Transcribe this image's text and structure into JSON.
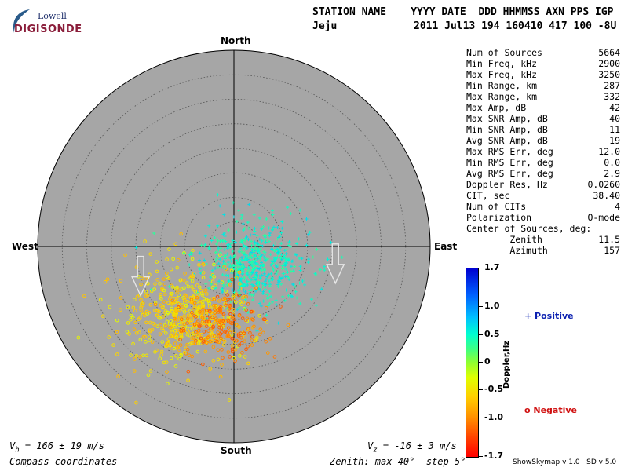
{
  "logo": {
    "top": "Lowell",
    "bottom": "DIGISONDE"
  },
  "header": {
    "row1": "STATION NAME    YYYY DATE  DDD HHMMSS AXN PPS IGP",
    "station": "Jeju",
    "row2": "2011 Jul13 194 160410 417 100 -8U"
  },
  "stats": [
    {
      "label": "Num of Sources",
      "value": "5664"
    },
    {
      "label": "Min Freq, kHz",
      "value": "2900"
    },
    {
      "label": "Max Freq, kHz",
      "value": "3250"
    },
    {
      "label": "Min Range, km",
      "value": "287"
    },
    {
      "label": "Max Range, km",
      "value": "332"
    },
    {
      "label": "Max Amp, dB",
      "value": "42"
    },
    {
      "label": "Max SNR Amp, dB",
      "value": "40"
    },
    {
      "label": "Min SNR Amp, dB",
      "value": "11"
    },
    {
      "label": "Avg SNR Amp, dB",
      "value": "19"
    },
    {
      "label": "Max RMS Err, deg",
      "value": "12.0"
    },
    {
      "label": "Min RMS Err, deg",
      "value": "0.0"
    },
    {
      "label": "Avg RMS Err, deg",
      "value": "2.9"
    },
    {
      "label": "Doppler Res, Hz",
      "value": "0.0260"
    },
    {
      "label": "CIT, sec",
      "value": "38.40"
    },
    {
      "label": "Num of CITs",
      "value": "4"
    },
    {
      "label": "Polarization",
      "value": "O-mode"
    },
    {
      "label": "Center of Sources, deg:",
      "value": ""
    },
    {
      "label": "        Zenith",
      "value": "11.5"
    },
    {
      "label": "        Azimuth",
      "value": "157"
    }
  ],
  "compass": {
    "north": "North",
    "south": "South",
    "east": "East",
    "west": "West"
  },
  "footer": {
    "vh_sym": "V",
    "vh_sub": "h",
    "vh_text": " = 166 ± 19 m/s",
    "vz_sym": "V",
    "vz_sub": "z",
    "vz_text": " = -16 ± 3 m/s",
    "coords": "Compass coordinates",
    "zenith": "Zenith: max 40°  step 5°"
  },
  "colorbar": {
    "title": "Doppler,Hz",
    "ticks": [
      "1.7",
      "1.0",
      "0.5",
      "0",
      "-0.5",
      "-1.0",
      "-1.7"
    ],
    "positive": "+ Positive",
    "negative": "o Negative"
  },
  "version": "ShowSkymap v 1.0   SD v 5.0",
  "chart_data": {
    "type": "scatter",
    "projection": "polar",
    "zenith_max_deg": 40,
    "zenith_step_deg": 5,
    "colorbar_range_hz": [
      -1.7,
      1.7
    ],
    "sources_count": 5664,
    "center_zenith_deg": 11.5,
    "center_azimuth_deg": 157,
    "clusters": [
      {
        "polarity": "positive",
        "marker": "+",
        "center_zenith_deg": 5,
        "center_azimuth_deg": 140,
        "spread_deg": 5,
        "doppler_hz": [
          0.3,
          0.7
        ],
        "share": 0.45
      },
      {
        "polarity": "negative",
        "marker": "o",
        "center_zenith_deg": 17,
        "center_azimuth_deg": 215,
        "spread_deg": 6,
        "doppler_hz": [
          -0.8,
          -0.3
        ],
        "share": 0.4
      },
      {
        "polarity": "negative",
        "marker": "o",
        "center_zenith_deg": 16,
        "center_azimuth_deg": 190,
        "spread_deg": 4,
        "doppler_hz": [
          -1.3,
          -0.9
        ],
        "share": 0.15
      }
    ],
    "velocity_arrows": [
      {
        "zenith_deg": 20,
        "azimuth_deg": 252
      },
      {
        "zenith_deg": 21,
        "azimuth_deg": 100
      }
    ]
  }
}
